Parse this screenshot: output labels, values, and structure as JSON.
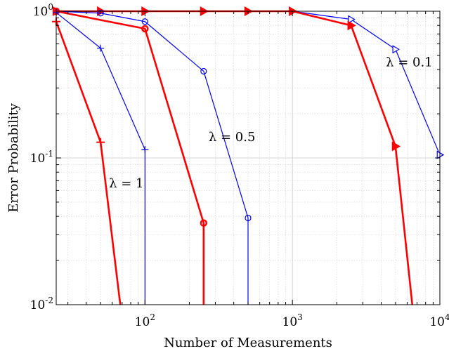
{
  "chart_data": {
    "type": "line",
    "xlabel": "Number of Measurements",
    "ylabel": "Error Probability",
    "xscale": "log",
    "yscale": "log",
    "xlim": [
      25,
      10000
    ],
    "ylim": [
      0.01,
      1
    ],
    "grid": true,
    "x_ticks": [
      {
        "value": 100,
        "base": "10",
        "exp": "2"
      },
      {
        "value": 1000,
        "base": "10",
        "exp": "3"
      },
      {
        "value": 10000,
        "base": "10",
        "exp": "4"
      }
    ],
    "y_ticks": [
      {
        "value": 1,
        "base": "10",
        "exp": "0"
      },
      {
        "value": 0.1,
        "base": "10",
        "exp": "-1"
      },
      {
        "value": 0.01,
        "base": "10",
        "exp": "-2"
      }
    ],
    "annotations": [
      {
        "text": "λ = 0.1",
        "x": 4300,
        "y": 0.42
      },
      {
        "text": "λ = 0.5",
        "x": 270,
        "y": 0.13
      },
      {
        "text": "λ = 1",
        "x": 57,
        "y": 0.063
      }
    ],
    "series": [
      {
        "color": "#0000ff",
        "marker": "triangle",
        "width": 1.2,
        "markersize": 5,
        "x": [
          25,
          50,
          100,
          250,
          500,
          1000,
          2500,
          5000,
          10000
        ],
        "y": [
          1.0,
          1.0,
          1.0,
          1.0,
          1.0,
          1.0,
          0.88,
          0.55,
          0.105
        ]
      },
      {
        "color": "#ff0000",
        "marker": "triangle",
        "width": 2.6,
        "markersize": 6,
        "x": [
          25,
          50,
          100,
          250,
          500,
          1000,
          2500,
          5000,
          6500
        ],
        "y": [
          1.0,
          1.0,
          1.0,
          1.0,
          1.0,
          1.0,
          0.8,
          0.12,
          0.01
        ]
      },
      {
        "color": "#0000ff",
        "marker": "circle",
        "width": 1.2,
        "markersize": 4,
        "x": [
          25,
          50,
          100,
          250,
          500,
          500
        ],
        "y": [
          1.0,
          0.97,
          0.85,
          0.39,
          0.039,
          0.01
        ]
      },
      {
        "color": "#ff0000",
        "marker": "circle",
        "width": 2.6,
        "markersize": 4,
        "x": [
          25,
          100,
          250,
          250
        ],
        "y": [
          1.0,
          0.76,
          0.036,
          0.01
        ]
      },
      {
        "color": "#0000ff",
        "marker": "plus",
        "width": 1.2,
        "markersize": 5,
        "x": [
          25,
          50,
          100,
          100
        ],
        "y": [
          0.98,
          0.56,
          0.114,
          0.01
        ]
      },
      {
        "color": "#ff0000",
        "marker": "plus",
        "width": 2.6,
        "markersize": 6,
        "x": [
          25,
          50,
          68
        ],
        "y": [
          0.85,
          0.128,
          0.01
        ]
      }
    ]
  }
}
